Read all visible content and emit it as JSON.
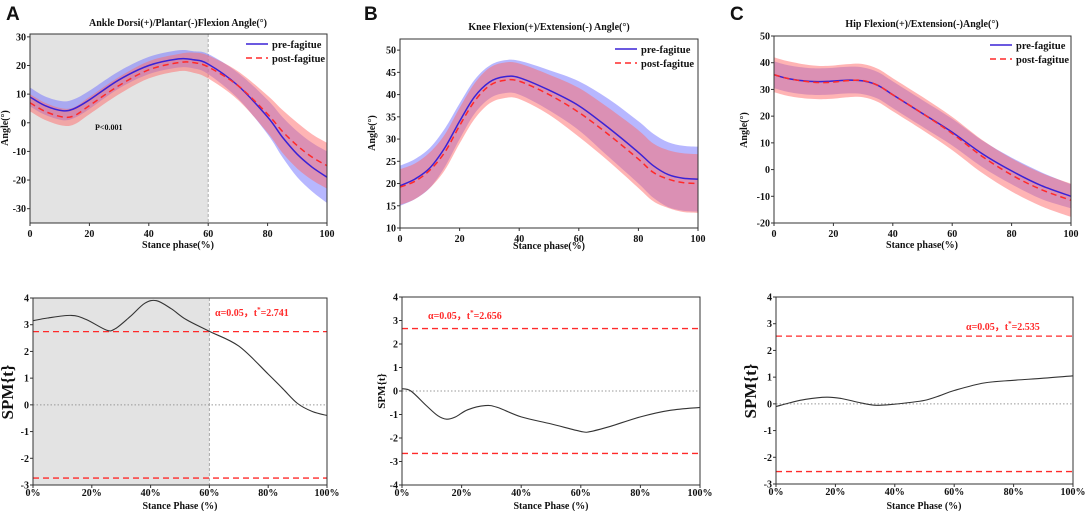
{
  "chart_data": [
    {
      "panel": "A",
      "type": "line",
      "title": "Ankle Dorsi(+)/Plantar(-)Flexion Angle(°)",
      "xlabel": "Stance phase(%)",
      "ylabel": "Angle(°)",
      "xlim": [
        0,
        100
      ],
      "ylim": [
        -35,
        31
      ],
      "xticks": [
        "0",
        "20",
        "40",
        "60",
        "80",
        "100"
      ],
      "xtick_values": [
        0,
        20,
        40,
        60,
        80,
        100
      ],
      "yticks": [
        "30",
        "20",
        "10",
        "0",
        "-10",
        "-20",
        "-30"
      ],
      "ytick_values": [
        30,
        20,
        10,
        0,
        -10,
        -20,
        -30
      ],
      "legend_position": "top-right",
      "shaded_region": [
        0,
        60
      ],
      "annotation": "P<0.001",
      "x": [
        0,
        5,
        11,
        15,
        20,
        30,
        40,
        50,
        55,
        60,
        70,
        80,
        85,
        90,
        95,
        100
      ],
      "series": [
        {
          "name": "pre-fagitue",
          "color": "#3a22d6",
          "band_color": "#6f6fff",
          "style": "solid",
          "mean": [
            9,
            6,
            4.2,
            5,
            8,
            15,
            20,
            22.3,
            22,
            20.5,
            13,
            2,
            -5,
            -11,
            -15.5,
            -19
          ],
          "sd": [
            3.3,
            3.2,
            3.3,
            3.3,
            3.2,
            3,
            3,
            3,
            3,
            3.5,
            4.5,
            6,
            7,
            8,
            8.5,
            9
          ]
        },
        {
          "name": "post-fagitue",
          "color": "#ff2a2a",
          "band_color": "#ff6a6a",
          "style": "dashed",
          "mean": [
            7,
            4,
            2,
            2.5,
            6,
            13,
            18.5,
            21,
            21,
            19.5,
            13,
            3,
            -3,
            -8,
            -12,
            -15
          ],
          "sd": [
            3,
            3,
            3,
            3,
            3,
            3,
            3,
            3,
            3.5,
            4,
            5,
            6.5,
            7.5,
            8,
            8,
            8
          ]
        }
      ]
    },
    {
      "panel": "B",
      "type": "line",
      "title": "Knee Flexion(+)/Extension(-) Angle(°)",
      "xlabel": "Stance phase(%)",
      "ylabel": "Angle(°)",
      "xlim": [
        0,
        100
      ],
      "ylim": [
        10,
        52.5
      ],
      "xticks": [
        "0",
        "20",
        "40",
        "60",
        "80",
        "100"
      ],
      "xtick_values": [
        0,
        20,
        40,
        60,
        80,
        100
      ],
      "yticks": [
        "10",
        "15",
        "20",
        "25",
        "30",
        "35",
        "40",
        "45",
        "50"
      ],
      "ytick_values": [
        10,
        15,
        20,
        25,
        30,
        35,
        40,
        45,
        50
      ],
      "legend_position": "top-right",
      "x": [
        0,
        5,
        10,
        15,
        20,
        25,
        30,
        35,
        40,
        50,
        60,
        70,
        80,
        85,
        90,
        95,
        100
      ],
      "series": [
        {
          "name": "pre-fagitue",
          "color": "#3a22d6",
          "band_color": "#6f6fff",
          "style": "solid",
          "mean": [
            19.5,
            21,
            23.5,
            28,
            34,
            39.5,
            42.8,
            44,
            43.8,
            41,
            37.5,
            32.5,
            27,
            24,
            22,
            21.2,
            21
          ],
          "sd": [
            4.5,
            4.5,
            4.5,
            4.3,
            4,
            3.8,
            3.7,
            3.7,
            3.8,
            4.5,
            5.5,
            6.5,
            7,
            7.2,
            7.3,
            7.3,
            7.3
          ]
        },
        {
          "name": "post-fagitue",
          "color": "#ff2a2a",
          "band_color": "#ff6a6a",
          "style": "dashed",
          "mean": [
            19.2,
            20.5,
            23,
            27,
            33,
            38.5,
            42,
            43.2,
            43,
            40,
            36,
            31,
            25.5,
            22.5,
            21,
            20.2,
            20
          ],
          "sd": [
            4,
            4,
            4,
            4,
            4,
            4,
            4,
            4,
            4,
            4.5,
            5.5,
            6,
            6.5,
            6.5,
            6.5,
            6.6,
            6.6
          ]
        }
      ]
    },
    {
      "panel": "C",
      "type": "line",
      "title": "Hip Flexion(+)/Extension(-)Angle(°)",
      "xlabel": "Stance phase(%)",
      "ylabel": "Angle(°)",
      "xlim": [
        0,
        100
      ],
      "ylim": [
        -20,
        50
      ],
      "xticks": [
        "0",
        "20",
        "40",
        "60",
        "80",
        "100"
      ],
      "xtick_values": [
        0,
        20,
        40,
        60,
        80,
        100
      ],
      "yticks": [
        "50",
        "40",
        "30",
        "20",
        "10",
        "0",
        "-10",
        "-20"
      ],
      "ytick_values": [
        50,
        40,
        30,
        20,
        10,
        0,
        -10,
        -20
      ],
      "legend_position": "top-right",
      "x": [
        0,
        5,
        12,
        18,
        25,
        30,
        35,
        40,
        50,
        60,
        70,
        80,
        90,
        100
      ],
      "series": [
        {
          "name": "pre-fagitue",
          "color": "#3a22d6",
          "band_color": "#6f6fff",
          "style": "solid",
          "mean": [
            35.5,
            34,
            33,
            33,
            33.5,
            33.2,
            31.5,
            28,
            21,
            14,
            6,
            -0.5,
            -6,
            -10
          ],
          "sd": [
            5,
            5,
            5,
            5,
            5,
            5,
            5,
            5,
            5,
            5,
            5,
            5,
            5,
            4.5
          ]
        },
        {
          "name": "post-fagitue",
          "color": "#ff2a2a",
          "band_color": "#ff6a6a",
          "style": "dashed",
          "mean": [
            35.5,
            34,
            32.8,
            32.6,
            33.3,
            33.3,
            31.5,
            28,
            21,
            13.5,
            5,
            -2,
            -7.5,
            -11.5
          ],
          "sd": [
            6.5,
            6.5,
            6.3,
            6.2,
            6.2,
            6.2,
            6.2,
            6.2,
            6.2,
            6.2,
            6.2,
            6.2,
            6.2,
            6.2
          ]
        }
      ]
    },
    {
      "panel": "A",
      "type": "line",
      "xlabel": "Stance Phase (%)",
      "ylabel": "SPM{t}",
      "xlim": [
        0,
        100
      ],
      "ylim": [
        -3,
        4
      ],
      "xticks": [
        "0%",
        "20%",
        "40%",
        "60%",
        "80%",
        "100%"
      ],
      "xtick_values": [
        0,
        20,
        40,
        60,
        80,
        100
      ],
      "yticks": [
        "4",
        "3",
        "2",
        "1",
        "0",
        "-1",
        "-2",
        "-3"
      ],
      "ytick_values": [
        4,
        3,
        2,
        1,
        0,
        -1,
        -2,
        -3
      ],
      "shaded_region": [
        0,
        60
      ],
      "threshold": 2.741,
      "annotation_prefix": "α=0.05，t",
      "annotation_sup": "*",
      "annotation_suffix": "=2.741",
      "x": [
        0,
        5,
        13,
        18,
        25,
        28,
        33,
        38,
        42,
        47,
        52,
        60,
        70,
        80,
        85,
        90,
        95,
        100
      ],
      "values": [
        3.15,
        3.25,
        3.35,
        3.2,
        2.8,
        2.85,
        3.3,
        3.8,
        3.9,
        3.6,
        3.2,
        2.75,
        2.2,
        1.15,
        0.6,
        0.05,
        -0.25,
        -0.4
      ]
    },
    {
      "panel": "B",
      "type": "line",
      "xlabel": "Stance Phase (%)",
      "ylabel": "SPM{t}",
      "xlim": [
        0,
        100
      ],
      "ylim": [
        -4,
        4
      ],
      "xticks": [
        "0%",
        "20%",
        "40%",
        "60%",
        "80%",
        "100%"
      ],
      "xtick_values": [
        0,
        20,
        40,
        60,
        80,
        100
      ],
      "yticks": [
        "4",
        "3",
        "2",
        "1",
        "0",
        "-1",
        "-2",
        "-3",
        "-4"
      ],
      "ytick_values": [
        4,
        3,
        2,
        1,
        0,
        -1,
        -2,
        -3,
        -4
      ],
      "threshold": 2.656,
      "annotation_prefix": "α=0.05，t",
      "annotation_sup": "*",
      "annotation_suffix": "=2.656",
      "x": [
        0,
        3,
        8,
        12,
        15,
        18,
        22,
        28,
        32,
        40,
        50,
        60,
        63,
        70,
        80,
        90,
        100
      ],
      "values": [
        0.1,
        0,
        -0.6,
        -1.05,
        -1.2,
        -1.1,
        -0.8,
        -0.62,
        -0.7,
        -1.1,
        -1.4,
        -1.72,
        -1.73,
        -1.5,
        -1.1,
        -0.82,
        -0.7
      ]
    },
    {
      "panel": "C",
      "type": "line",
      "xlabel": "Stance Phase (%)",
      "ylabel": "SPM{t}",
      "xlim": [
        0,
        100
      ],
      "ylim": [
        -3,
        4
      ],
      "xticks": [
        "0%",
        "20%",
        "40%",
        "60%",
        "80%",
        "100%"
      ],
      "xtick_values": [
        0,
        20,
        40,
        60,
        80,
        100
      ],
      "yticks": [
        "4",
        "3",
        "2",
        "1",
        "0",
        "-1",
        "-2",
        "-3"
      ],
      "ytick_values": [
        4,
        3,
        2,
        1,
        0,
        -1,
        -2,
        -3
      ],
      "threshold": 2.535,
      "annotation_prefix": "α=0.05，t",
      "annotation_sup": "*",
      "annotation_suffix": "=2.535",
      "x": [
        0,
        5,
        10,
        17,
        22,
        28,
        33,
        38,
        45,
        50,
        55,
        60,
        70,
        80,
        90,
        100
      ],
      "values": [
        -0.1,
        0.05,
        0.17,
        0.25,
        0.2,
        0.05,
        -0.05,
        -0.03,
        0.05,
        0.13,
        0.3,
        0.5,
        0.78,
        0.88,
        0.96,
        1.05
      ]
    }
  ]
}
